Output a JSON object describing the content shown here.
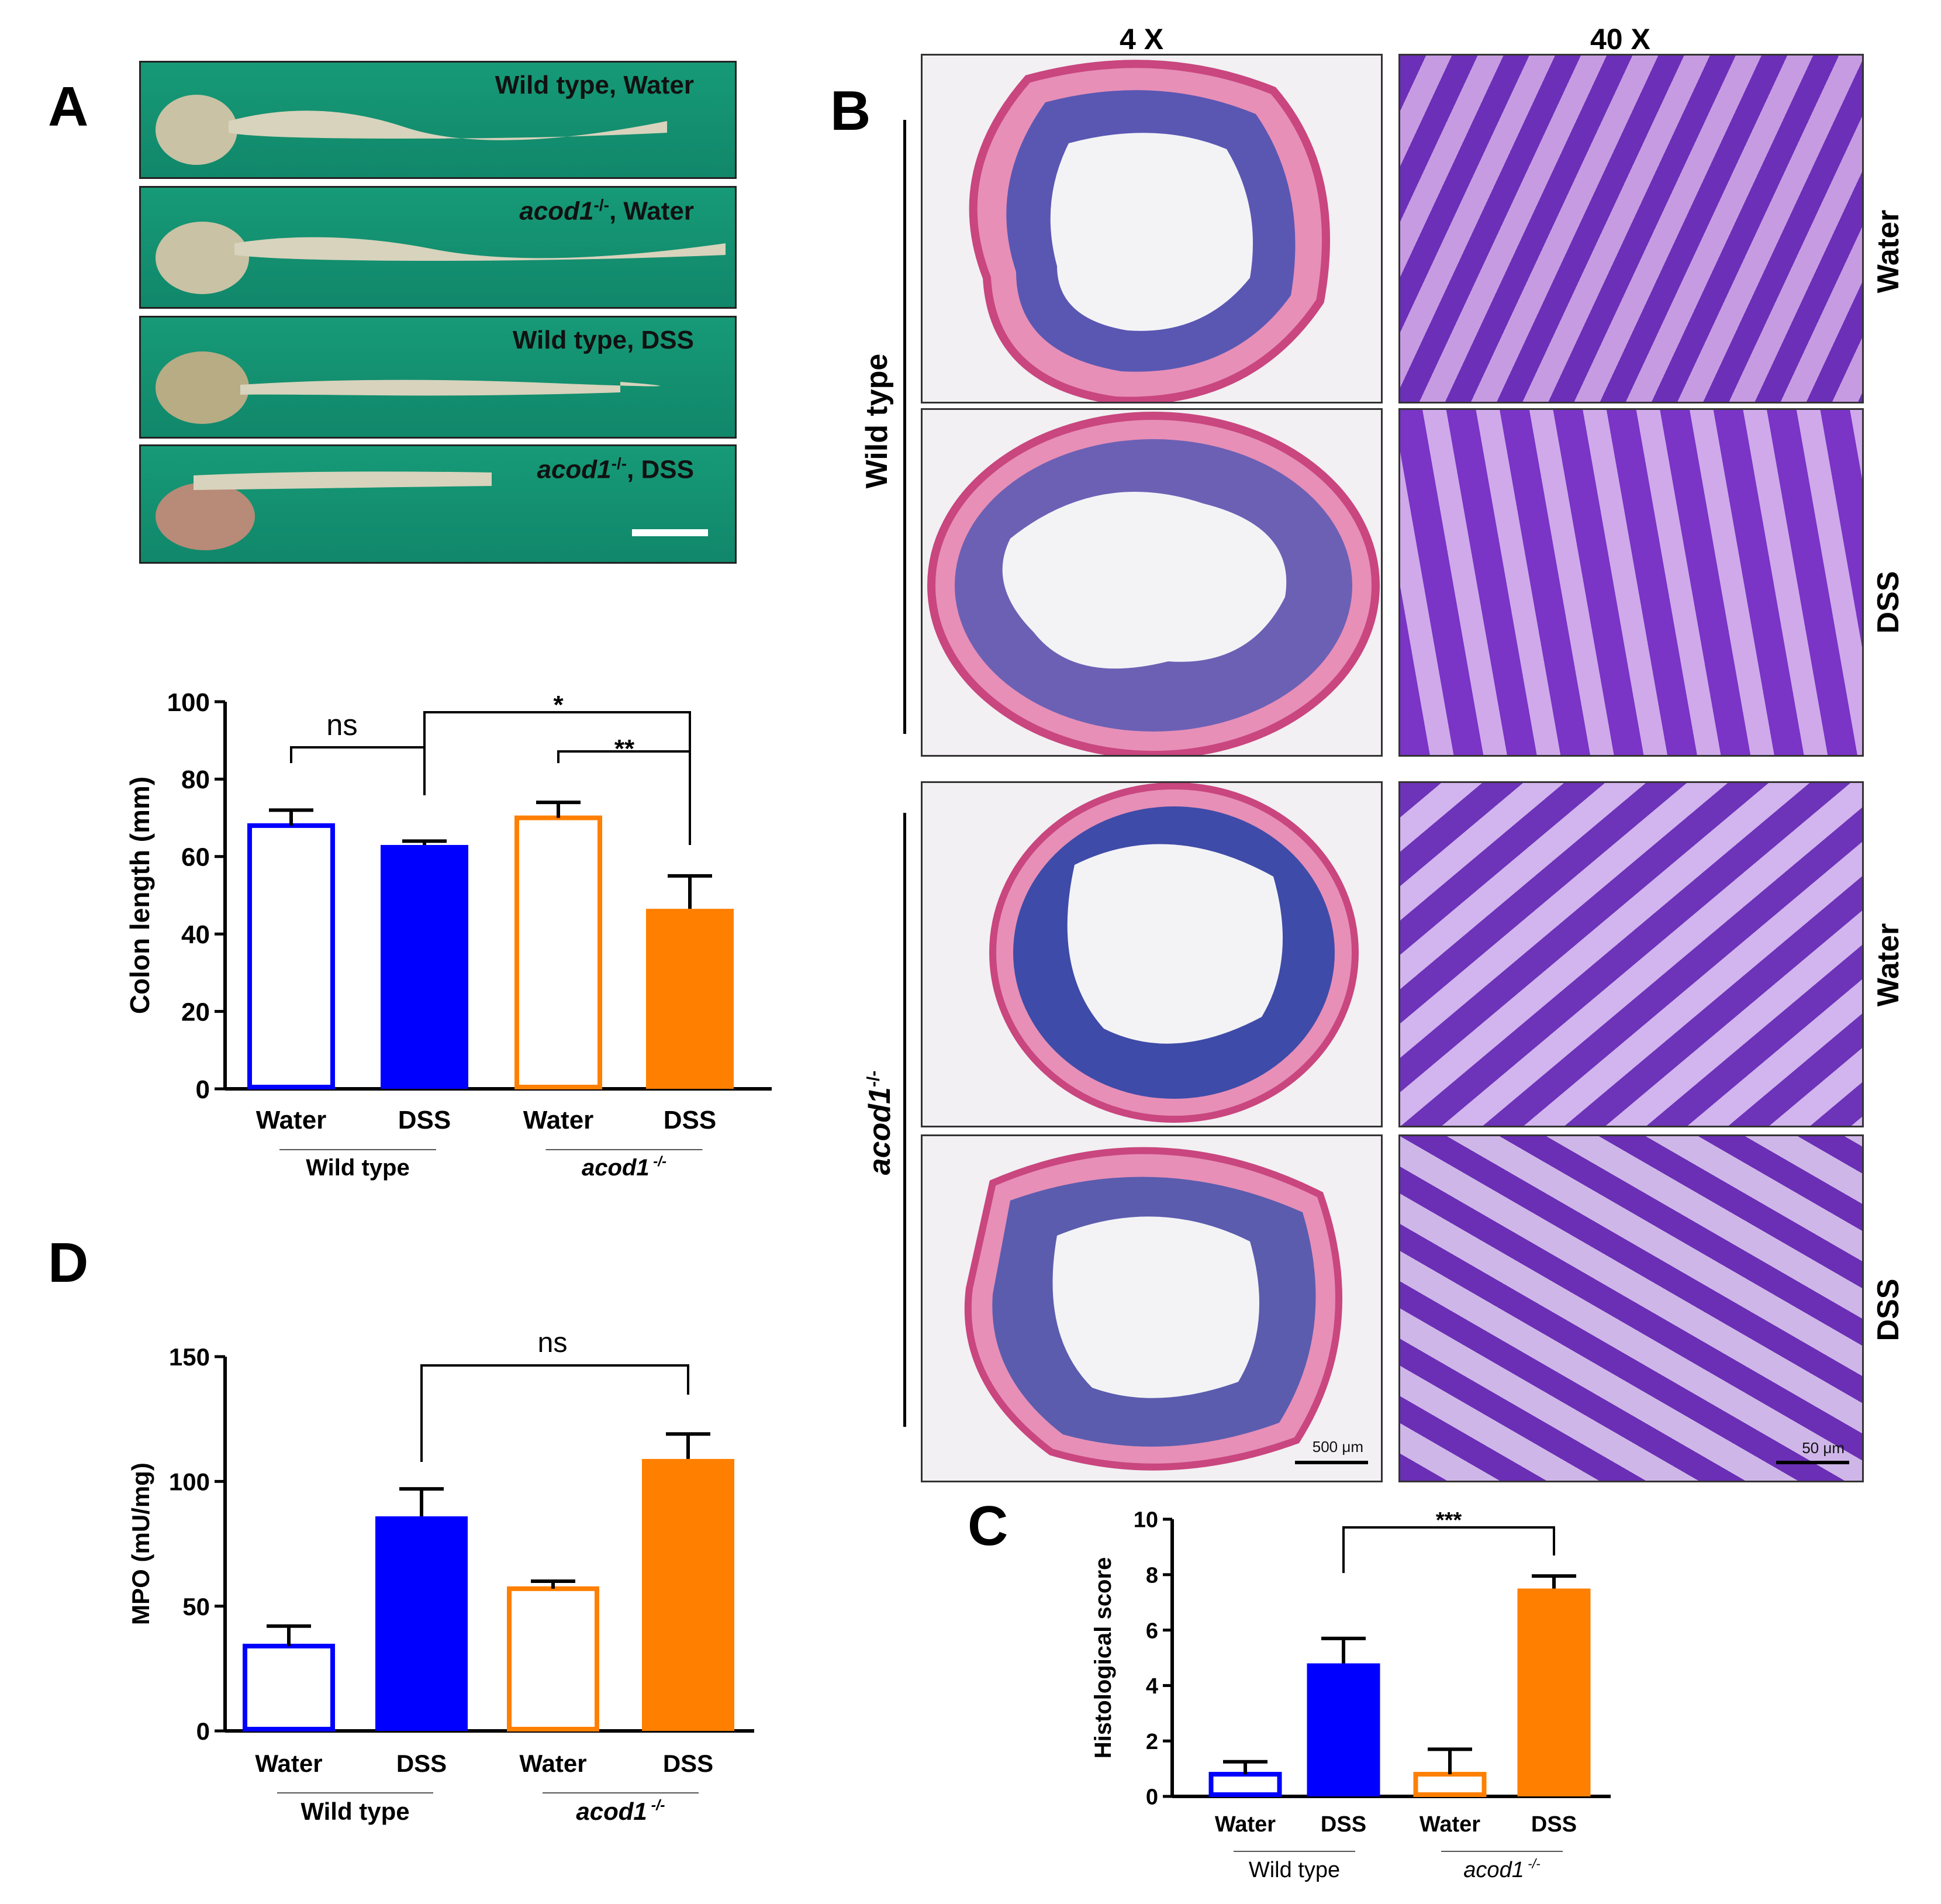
{
  "panels": {
    "A": {
      "label": "A",
      "photos": [
        {
          "label": "Wild type, Water",
          "genotype_italic": false
        },
        {
          "label": "acod1",
          "sup": "-/-",
          "rest": ", Water",
          "genotype_italic": true
        },
        {
          "label": "Wild type, DSS",
          "genotype_italic": false
        },
        {
          "label": "acod1",
          "sup": "-/-",
          "rest": ", DSS",
          "genotype_italic": true
        }
      ]
    },
    "B": {
      "label": "B",
      "col_titles": [
        "4 X",
        "40 X"
      ],
      "group_labels": [
        "Wild type",
        "acod1"
      ],
      "group_label_sup": "-/-",
      "row_labels": [
        "Water",
        "DSS",
        "Water",
        "DSS"
      ],
      "scalebars": [
        "500 μm",
        "50 μm"
      ]
    },
    "C": {
      "label": "C"
    },
    "D": {
      "label": "D"
    }
  },
  "chart_data": [
    {
      "id": "colon-length",
      "type": "bar",
      "categories": [
        "Water",
        "DSS",
        "Water",
        "DSS"
      ],
      "groups": [
        "Wild type",
        "acod1"
      ],
      "group_sup": " -/-",
      "values": [
        68,
        63,
        70,
        46.5
      ],
      "errors": [
        4,
        1,
        4,
        8.5
      ],
      "fill": [
        "none",
        "#0000ff",
        "none",
        "#ff7f00"
      ],
      "stroke": [
        "#0000ff",
        "#0000ff",
        "#ff7f00",
        "#ff7f00"
      ],
      "ylabel": "Colon length (mm)",
      "ylim": [
        0,
        100
      ],
      "yticks": [
        0,
        20,
        40,
        60,
        80,
        100
      ],
      "annotations": [
        {
          "text": "ns"
        },
        {
          "text": "*"
        },
        {
          "text": "**"
        }
      ]
    },
    {
      "id": "mpo",
      "type": "bar",
      "categories": [
        "Water",
        "DSS",
        "Water",
        "DSS"
      ],
      "groups": [
        "Wild type",
        "acod1"
      ],
      "group_sup": " -/-",
      "values": [
        34,
        86,
        57,
        109
      ],
      "errors": [
        8,
        11,
        3,
        10
      ],
      "fill": [
        "none",
        "#0000ff",
        "none",
        "#ff7f00"
      ],
      "stroke": [
        "#0000ff",
        "#0000ff",
        "#ff7f00",
        "#ff7f00"
      ],
      "ylabel": "MPO (mU/mg)",
      "ylim": [
        0,
        150
      ],
      "yticks": [
        0,
        50,
        100,
        150
      ],
      "annotations": [
        {
          "text": "ns"
        }
      ]
    },
    {
      "id": "histological-score",
      "type": "bar",
      "categories": [
        "Water",
        "DSS",
        "Water",
        "DSS"
      ],
      "groups": [
        "Wild type",
        "acod1"
      ],
      "group_sup": " -/-",
      "values": [
        0.8,
        4.8,
        0.8,
        7.5
      ],
      "errors": [
        0.45,
        0.9,
        0.9,
        0.45
      ],
      "fill": [
        "none",
        "#0000ff",
        "none",
        "#ff7f00"
      ],
      "stroke": [
        "#0000ff",
        "#0000ff",
        "#ff7f00",
        "#ff7f00"
      ],
      "ylabel": "Histological score",
      "ylim": [
        0,
        10
      ],
      "yticks": [
        0,
        2,
        4,
        6,
        8,
        10
      ],
      "annotations": [
        {
          "text": "***"
        }
      ]
    }
  ]
}
